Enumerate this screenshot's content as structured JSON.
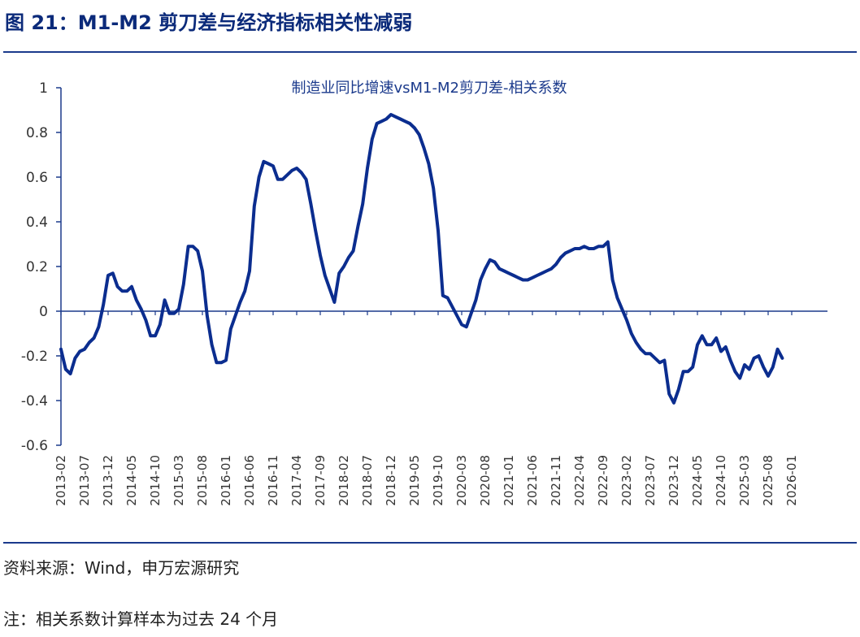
{
  "figure": {
    "title": "图 21：M1-M2 剪刀差与经济指标相关性减弱",
    "source": "资料来源：Wind，申万宏源研究",
    "note": "注：相关系数计算样本为过去 24 个月"
  },
  "colors": {
    "line": "#0b2d8f",
    "axis": "#1b3a8c",
    "title": "#0b2a7a"
  },
  "chart_data": {
    "type": "line",
    "title": "制造业同比增速vsM1-M2剪刀差-相关系数",
    "xlabel": "",
    "ylabel": "",
    "ylim": [
      -0.6,
      1
    ],
    "yticks": [
      -0.6,
      -0.4,
      -0.2,
      0,
      0.2,
      0.4,
      0.6,
      0.8,
      1
    ],
    "ytick_labels": [
      "-0.6",
      "-0.4",
      "-0.2",
      "0",
      "0.2",
      "0.4",
      "0.6",
      "0.8",
      "1"
    ],
    "x_start": "2013-02",
    "xtick_labels": [
      "2013-02",
      "2013-07",
      "2013-12",
      "2014-05",
      "2014-10",
      "2015-03",
      "2015-08",
      "2016-01",
      "2016-06",
      "2016-11",
      "2017-04",
      "2017-09",
      "2018-02",
      "2018-07",
      "2018-12",
      "2019-05",
      "2019-10",
      "2020-03",
      "2020-08",
      "2021-01",
      "2021-06",
      "2021-11",
      "2022-04",
      "2022-09",
      "2023-02",
      "2023-07",
      "2023-12",
      "2024-05",
      "2024-10",
      "2025-03",
      "2025-08",
      "2026-01"
    ],
    "series": [
      {
        "name": "相关系数",
        "points": [
          [
            0,
            -0.17
          ],
          [
            1,
            -0.26
          ],
          [
            2,
            -0.28
          ],
          [
            3,
            -0.21
          ],
          [
            4,
            -0.18
          ],
          [
            5,
            -0.17
          ],
          [
            6,
            -0.14
          ],
          [
            7,
            -0.12
          ],
          [
            8,
            -0.07
          ],
          [
            9,
            0.03
          ],
          [
            10,
            0.16
          ],
          [
            11,
            0.17
          ],
          [
            12,
            0.11
          ],
          [
            13,
            0.09
          ],
          [
            14,
            0.09
          ],
          [
            15,
            0.11
          ],
          [
            16,
            0.05
          ],
          [
            17,
            0.01
          ],
          [
            18,
            -0.04
          ],
          [
            19,
            -0.11
          ],
          [
            20,
            -0.11
          ],
          [
            21,
            -0.06
          ],
          [
            22,
            0.05
          ],
          [
            23,
            -0.01
          ],
          [
            24,
            -0.01
          ],
          [
            25,
            0.01
          ],
          [
            26,
            0.12
          ],
          [
            27,
            0.29
          ],
          [
            28,
            0.29
          ],
          [
            29,
            0.27
          ],
          [
            30,
            0.18
          ],
          [
            31,
            -0.02
          ],
          [
            32,
            -0.15
          ],
          [
            33,
            -0.23
          ],
          [
            34,
            -0.23
          ],
          [
            35,
            -0.22
          ],
          [
            36,
            -0.08
          ],
          [
            37,
            -0.02
          ],
          [
            38,
            0.04
          ],
          [
            39,
            0.09
          ],
          [
            40,
            0.18
          ],
          [
            41,
            0.47
          ],
          [
            42,
            0.6
          ],
          [
            43,
            0.67
          ],
          [
            44,
            0.66
          ],
          [
            45,
            0.65
          ],
          [
            46,
            0.59
          ],
          [
            47,
            0.59
          ],
          [
            48,
            0.61
          ],
          [
            49,
            0.63
          ],
          [
            50,
            0.64
          ],
          [
            51,
            0.62
          ],
          [
            52,
            0.59
          ],
          [
            53,
            0.48
          ],
          [
            54,
            0.36
          ],
          [
            55,
            0.25
          ],
          [
            56,
            0.16
          ],
          [
            57,
            0.1
          ],
          [
            58,
            0.04
          ],
          [
            59,
            0.17
          ],
          [
            60,
            0.2
          ],
          [
            61,
            0.24
          ],
          [
            62,
            0.27
          ],
          [
            63,
            0.38
          ],
          [
            64,
            0.48
          ],
          [
            65,
            0.64
          ],
          [
            66,
            0.77
          ],
          [
            67,
            0.84
          ],
          [
            68,
            0.85
          ],
          [
            69,
            0.86
          ],
          [
            70,
            0.88
          ],
          [
            71,
            0.87
          ],
          [
            72,
            0.86
          ],
          [
            73,
            0.85
          ],
          [
            74,
            0.84
          ],
          [
            75,
            0.82
          ],
          [
            76,
            0.79
          ],
          [
            77,
            0.73
          ],
          [
            78,
            0.66
          ],
          [
            79,
            0.55
          ],
          [
            80,
            0.36
          ],
          [
            81,
            0.07
          ],
          [
            82,
            0.06
          ],
          [
            83,
            0.02
          ],
          [
            84,
            -0.02
          ],
          [
            85,
            -0.06
          ],
          [
            86,
            -0.07
          ],
          [
            87,
            -0.01
          ],
          [
            88,
            0.05
          ],
          [
            89,
            0.14
          ],
          [
            90,
            0.19
          ],
          [
            91,
            0.23
          ],
          [
            92,
            0.22
          ],
          [
            93,
            0.19
          ],
          [
            94,
            0.18
          ],
          [
            95,
            0.17
          ],
          [
            96,
            0.16
          ],
          [
            97,
            0.15
          ],
          [
            98,
            0.14
          ],
          [
            99,
            0.14
          ],
          [
            100,
            0.15
          ],
          [
            101,
            0.16
          ],
          [
            102,
            0.17
          ],
          [
            103,
            0.18
          ],
          [
            104,
            0.19
          ],
          [
            105,
            0.21
          ],
          [
            106,
            0.24
          ],
          [
            107,
            0.26
          ],
          [
            108,
            0.27
          ],
          [
            109,
            0.28
          ],
          [
            110,
            0.28
          ],
          [
            111,
            0.29
          ],
          [
            112,
            0.28
          ],
          [
            113,
            0.28
          ],
          [
            114,
            0.29
          ],
          [
            115,
            0.29
          ],
          [
            116,
            0.31
          ],
          [
            117,
            0.14
          ],
          [
            118,
            0.06
          ],
          [
            119,
            0.01
          ],
          [
            120,
            -0.04
          ],
          [
            121,
            -0.1
          ],
          [
            122,
            -0.14
          ],
          [
            123,
            -0.17
          ],
          [
            124,
            -0.19
          ],
          [
            125,
            -0.19
          ],
          [
            126,
            -0.21
          ],
          [
            127,
            -0.23
          ],
          [
            128,
            -0.22
          ],
          [
            129,
            -0.37
          ],
          [
            130,
            -0.41
          ],
          [
            131,
            -0.35
          ],
          [
            132,
            -0.27
          ],
          [
            133,
            -0.27
          ],
          [
            134,
            -0.25
          ],
          [
            135,
            -0.15
          ],
          [
            136,
            -0.11
          ],
          [
            137,
            -0.15
          ],
          [
            138,
            -0.15
          ],
          [
            139,
            -0.12
          ],
          [
            140,
            -0.18
          ],
          [
            141,
            -0.16
          ],
          [
            142,
            -0.22
          ],
          [
            143,
            -0.27
          ],
          [
            144,
            -0.3
          ],
          [
            145,
            -0.24
          ],
          [
            146,
            -0.26
          ],
          [
            147,
            -0.21
          ],
          [
            148,
            -0.2
          ],
          [
            149,
            -0.25
          ],
          [
            150,
            -0.29
          ],
          [
            151,
            -0.25
          ],
          [
            152,
            -0.17
          ],
          [
            153,
            -0.21
          ]
        ]
      }
    ]
  }
}
